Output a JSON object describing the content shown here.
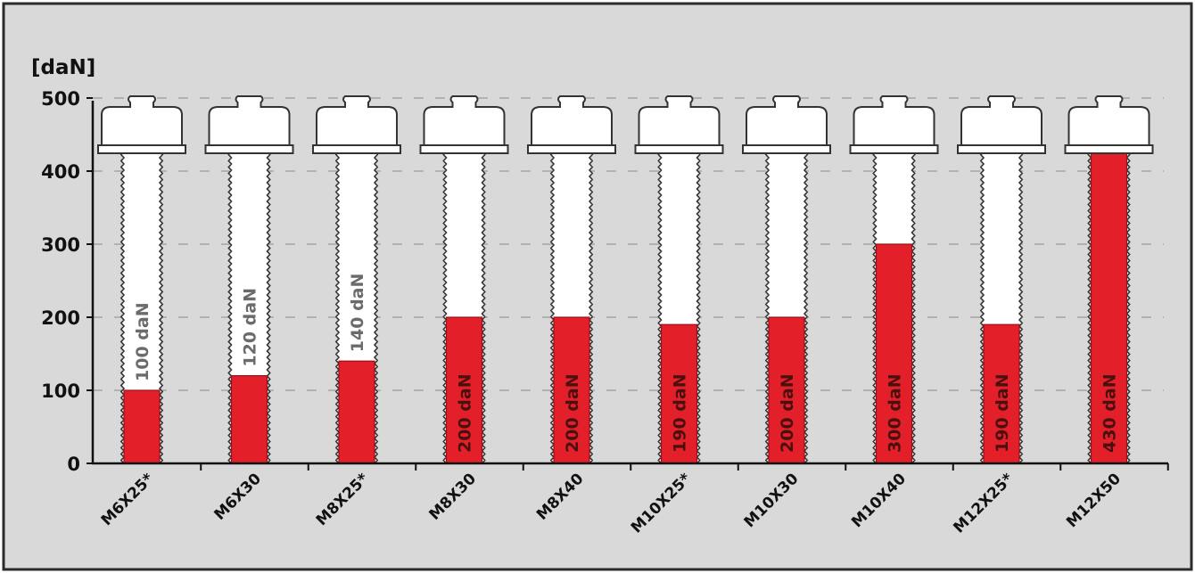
{
  "chart_data": {
    "type": "bar",
    "ylabel": "[daN]",
    "ylim": [
      0,
      500
    ],
    "yticks": [
      0,
      100,
      200,
      300,
      400,
      500
    ],
    "grid": true,
    "categories": [
      "M6X25*",
      "M6X30",
      "M8X25*",
      "M8X30",
      "M8X40",
      "M10X25*",
      "M10X30",
      "M10X40",
      "M12X25*",
      "M12X50"
    ],
    "values": [
      100,
      120,
      140,
      200,
      200,
      190,
      200,
      300,
      190,
      430
    ],
    "data_labels": [
      "100 daN",
      "120 daN",
      "140 daN",
      "200 daN",
      "200 daN",
      "190 daN",
      "200 daN",
      "300 daN",
      "190 daN",
      "430 daN"
    ]
  },
  "colors": {
    "background": "#d9d9d9",
    "frame": "#2b2b2b",
    "bar": "#e3202a",
    "bar_edge": "#9b1018",
    "bolt": "#ffffff",
    "bolt_outline": "#333333",
    "label_on_bar": "#4a1010",
    "label_on_white": "#6b6b6b"
  }
}
